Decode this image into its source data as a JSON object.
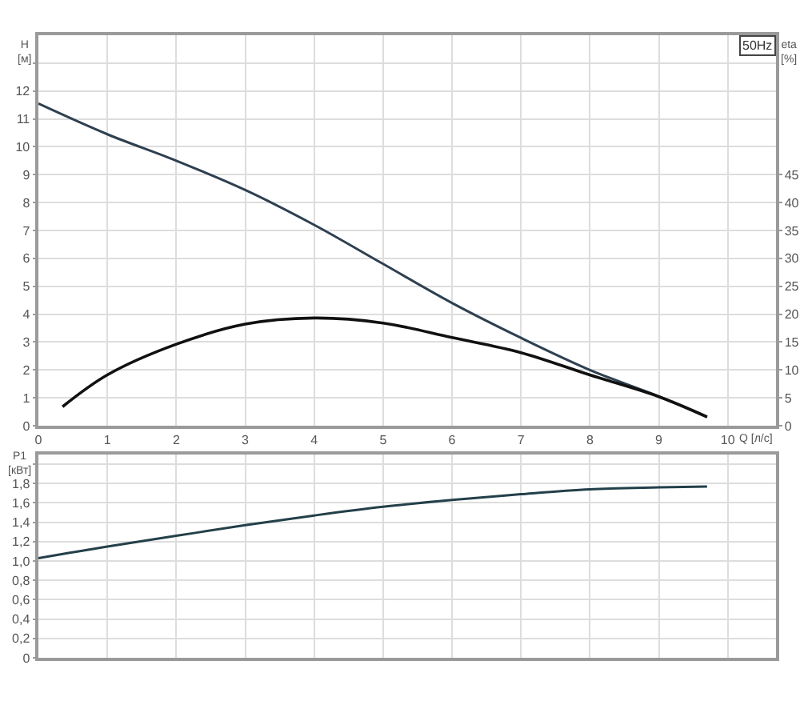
{
  "chart_data": [
    {
      "type": "line",
      "xlabel": "Q [л/с]",
      "ylabel": "H [м]",
      "y2label": "eta [%]",
      "annotations": [
        "50Hz"
      ],
      "xlim": [
        0,
        10.7
      ],
      "xticks": [
        0,
        1,
        2,
        3,
        4,
        5,
        6,
        7,
        8,
        9,
        10
      ],
      "ylim": [
        0,
        14
      ],
      "yticks": [
        0,
        1,
        2,
        3,
        4,
        5,
        6,
        7,
        8,
        9,
        10,
        11,
        12,
        {
          "value": 13,
          "label": null
        }
      ],
      "y2lim": [
        0,
        70
      ],
      "y2ticks": [
        0,
        5,
        10,
        15,
        20,
        25,
        30,
        35,
        40,
        45
      ],
      "grid": true,
      "series": [
        {
          "color": "#2e4050",
          "x": [
            0,
            1,
            2,
            3,
            4,
            5,
            6,
            7,
            8,
            9,
            9.7
          ],
          "values": [
            11.55,
            10.45,
            9.5,
            8.45,
            7.2,
            5.8,
            4.4,
            3.15,
            2.0,
            1.05,
            0.3
          ]
        },
        {
          "color": "#111111",
          "axis": "y2",
          "x": [
            0.35,
            1,
            2,
            3,
            4,
            5,
            6,
            7,
            8,
            9,
            9.7
          ],
          "values": [
            3.4,
            9.1,
            14.6,
            18.2,
            19.3,
            18.4,
            15.8,
            13.1,
            9.1,
            5.2,
            1.6
          ]
        }
      ]
    },
    {
      "type": "line",
      "ylabel": "P1 [кВт]",
      "xlim": [
        0,
        10.7
      ],
      "xticks": [
        0,
        1,
        2,
        3,
        4,
        5,
        6,
        7,
        8,
        9,
        10
      ],
      "ylim": [
        0,
        2.1
      ],
      "yticks": [
        0,
        {
          "value": 0.2,
          "label": "0,2"
        },
        {
          "value": 0.4,
          "label": "0,4"
        },
        {
          "value": 0.6,
          "label": "0,6"
        },
        {
          "value": 0.8,
          "label": "0,8"
        },
        {
          "value": 1.0,
          "label": "1,0"
        },
        {
          "value": 1.2,
          "label": "1,2"
        },
        {
          "value": 1.4,
          "label": "1,4"
        },
        {
          "value": 1.6,
          "label": "1,6"
        },
        {
          "value": 1.8,
          "label": "1,8"
        },
        {
          "value": 2.0,
          "label": null
        }
      ],
      "tick_labels": "y",
      "grid": true,
      "series": [
        {
          "color": "#23404a",
          "x": [
            0,
            1,
            2,
            3,
            4,
            5,
            6,
            7,
            8,
            9,
            9.7
          ],
          "values": [
            1.03,
            1.15,
            1.26,
            1.37,
            1.47,
            1.56,
            1.63,
            1.69,
            1.74,
            1.76,
            1.77
          ]
        }
      ]
    }
  ]
}
